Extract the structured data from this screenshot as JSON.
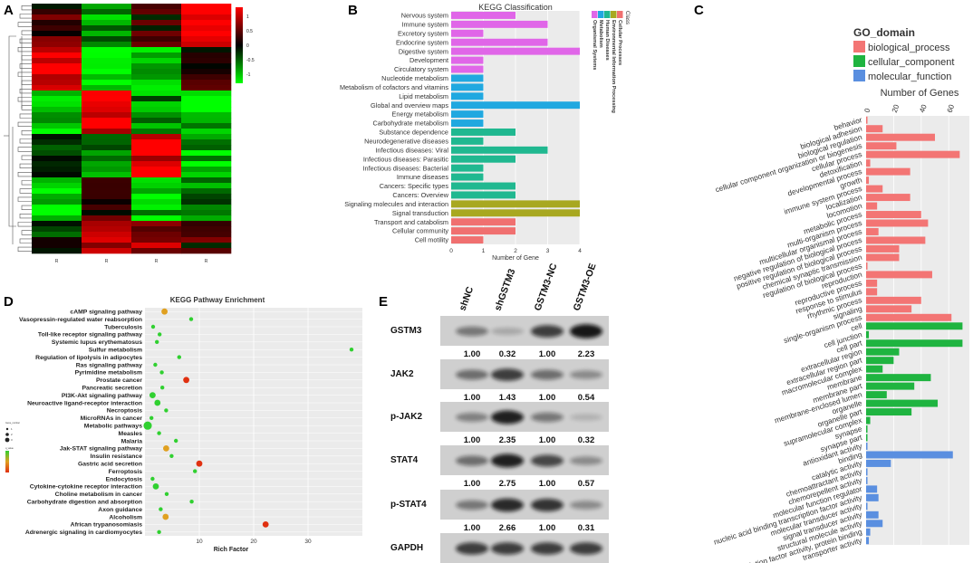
{
  "panels": {
    "A": "A",
    "B": "B",
    "C": "C",
    "D": "D",
    "E": "E"
  },
  "colors": {
    "purple": "#e066e8",
    "blue": "#20a8e0",
    "teal": "#20b890",
    "olive": "#a8a820",
    "salmon": "#f07070",
    "bp": "#f37574",
    "cc": "#1fb440",
    "mf": "#5a8fe0",
    "heat_red": "#ff0000",
    "heat_green": "#00ff00",
    "grid_bg": "#ebebeb"
  },
  "chart_data": [
    {
      "id": "A",
      "type": "heatmap",
      "colorbar": {
        "ticks": [
          "1",
          "0.5",
          "0",
          "-0.5",
          "-1"
        ],
        "range": [
          -1,
          1
        ]
      },
      "column_labels": [
        "R",
        "R",
        "R",
        "R"
      ]
    },
    {
      "id": "B",
      "type": "bar",
      "orientation": "horizontal",
      "title": "KEGG Classification",
      "xlabel": "Number of Gene",
      "xlim": [
        0,
        4
      ],
      "xticks": [
        "0",
        "1",
        "2",
        "3",
        "4"
      ],
      "legend_title": "Class",
      "legend": [
        "Cellular Processes",
        "Environmental Information Processing",
        "Human Diseases",
        "Metabolism",
        "Organismal Systems"
      ],
      "categories": [
        "Nervous system",
        "Immune system",
        "Excretory system",
        "Endocrine system",
        "Digestive system",
        "Development",
        "Circulatory system",
        "Nucleotide metabolism",
        "Metabolism of cofactors and vitamins",
        "Lipid metabolism",
        "Global and overview maps",
        "Energy metabolism",
        "Carbohydrate metabolism",
        "Substance dependence",
        "Neurodegenerative diseases",
        "Infectious diseases: Viral",
        "Infectious diseases: Parasitic",
        "Infectious diseases: Bacterial",
        "Immune diseases",
        "Cancers: Specific types",
        "Cancers: Overview",
        "Signaling molecules and interaction",
        "Signal transduction",
        "Transport and catabolism",
        "Cellular community",
        "Cell motility"
      ],
      "values": [
        2,
        3,
        1,
        3,
        4,
        1,
        1,
        1,
        1,
        1,
        4,
        1,
        1,
        2,
        1,
        3,
        2,
        1,
        1,
        2,
        2,
        4,
        4,
        2,
        2,
        1
      ],
      "classes": [
        "purple",
        "purple",
        "purple",
        "purple",
        "purple",
        "purple",
        "purple",
        "blue",
        "blue",
        "blue",
        "blue",
        "blue",
        "blue",
        "teal",
        "teal",
        "teal",
        "teal",
        "teal",
        "teal",
        "teal",
        "teal",
        "olive",
        "olive",
        "salmon",
        "salmon",
        "salmon"
      ]
    },
    {
      "id": "C",
      "type": "bar",
      "orientation": "horizontal",
      "legend_title": "GO_domain",
      "legend": [
        "biological_process",
        "cellular_component",
        "molecular_function"
      ],
      "xlabel": "Number of Genes",
      "xlim": [
        0,
        75
      ],
      "xticks": [
        "0",
        "20",
        "40",
        "60"
      ],
      "categories": [
        "behavior",
        "biological adhesion",
        "biological regulation",
        "cellular component organization or biogenesis",
        "cellular process",
        "detoxification",
        "developmental process",
        "growth",
        "immune system process",
        "localization",
        "locomotion",
        "metabolic process",
        "multi-organism process",
        "multicellular organismal process",
        "negative regulation of biological process",
        "positive regulation of biological process",
        "chemical synaptic transmission",
        "regulation of biological process",
        "reproduction",
        "reproductive process",
        "response to stimulus",
        "rhythmic process",
        "signaling",
        "single-organism process",
        "cell",
        "cell junction",
        "cell part",
        "extracellular region",
        "extracellular region part",
        "macromolecular complex",
        "membrane",
        "membrane part",
        "membrane-enclosed lumen",
        "organelle",
        "organelle part",
        "supramolecular complex",
        "synapse",
        "synapse part",
        "antioxidant activity",
        "binding",
        "catalytic activity",
        "chemoattractant activity",
        "chemorepellent activity",
        "molecular function regulator",
        "nucleic acid binding transcription factor activity",
        "molecular transducer activity",
        "signal transducer activity",
        "structural molecule activity",
        "transcription factor activity, protein binding",
        "transporter activity"
      ],
      "values": [
        1,
        12,
        50,
        22,
        68,
        3,
        32,
        2,
        12,
        32,
        8,
        40,
        45,
        9,
        43,
        24,
        24,
        1,
        48,
        8,
        8,
        40,
        33,
        62,
        70,
        2,
        70,
        24,
        20,
        12,
        47,
        35,
        15,
        52,
        33,
        3,
        1,
        1,
        1,
        63,
        18,
        1,
        1,
        8,
        9,
        1,
        9,
        12,
        3,
        2
      ],
      "domains": [
        "bp",
        "bp",
        "bp",
        "bp",
        "bp",
        "bp",
        "bp",
        "bp",
        "bp",
        "bp",
        "bp",
        "bp",
        "bp",
        "bp",
        "bp",
        "bp",
        "bp",
        "bp",
        "bp",
        "bp",
        "bp",
        "bp",
        "bp",
        "bp",
        "cc",
        "cc",
        "cc",
        "cc",
        "cc",
        "cc",
        "cc",
        "cc",
        "cc",
        "cc",
        "cc",
        "cc",
        "cc",
        "cc",
        "mf",
        "mf",
        "mf",
        "mf",
        "mf",
        "mf",
        "mf",
        "mf",
        "mf",
        "mf",
        "mf",
        "mf"
      ]
    },
    {
      "id": "D",
      "type": "scatter",
      "title": "KEGG Pathway Enrichment",
      "xlabel": "Rich Factor",
      "xlim": [
        0,
        40
      ],
      "xticks": [
        "10",
        "20",
        "30"
      ],
      "legend_labels": [
        "Gene_number",
        "1",
        "2",
        "3",
        "q_value"
      ],
      "categories": [
        "cAMP signaling pathway",
        "Vasopressin-regulated water reabsorption",
        "Tuberculosis",
        "Toll-like receptor signaling pathway",
        "Systemic lupus erythematosus",
        "Sulfur metabolism",
        "Regulation of lipolysis in adipocytes",
        "Ras signaling pathway",
        "Pyrimidine metabolism",
        "Prostate cancer",
        "Pancreatic secretion",
        "PI3K-Akt signaling pathway",
        "Neuroactive ligand-receptor interaction",
        "Necroptosis",
        "MicroRNAs in cancer",
        "Metabolic pathways",
        "Measles",
        "Malaria",
        "Jak-STAT signaling pathway",
        "Insulin resistance",
        "Gastric acid secretion",
        "Ferroptosis",
        "Endocytosis",
        "Cytokine-cytokine receptor interaction",
        "Choline metabolism in cancer",
        "Carbohydrate digestion and absorption",
        "Axon guidance",
        "Alcoholism",
        "African trypanosomiasis",
        "Adrenergic signaling in cardiomyocytes"
      ],
      "x": [
        3.6,
        8.5,
        1.5,
        2.7,
        2.2,
        38,
        6.3,
        1.9,
        3.1,
        7.6,
        3.2,
        1.4,
        2.3,
        3.9,
        1.2,
        0.5,
        2.6,
        5.7,
        3.9,
        4.9,
        10,
        9.2,
        1.4,
        2,
        4,
        8.6,
        2.9,
        3.8,
        22.2,
        2.6
      ],
      "gene_number": [
        2,
        1,
        1,
        1,
        1,
        1,
        1,
        1,
        1,
        2,
        1,
        2,
        2,
        1,
        1,
        3,
        1,
        1,
        2,
        1,
        2,
        1,
        1,
        2,
        1,
        1,
        1,
        2,
        2,
        1
      ],
      "q_value": [
        0.4,
        0.1,
        0.1,
        0.1,
        0.1,
        0.1,
        0.1,
        0.1,
        0.1,
        0.9,
        0.1,
        0.1,
        0.1,
        0.1,
        0.1,
        0.1,
        0.1,
        0.1,
        0.4,
        0.1,
        0.95,
        0.1,
        0.1,
        0.1,
        0.1,
        0.1,
        0.1,
        0.4,
        0.95,
        0.1
      ]
    },
    {
      "id": "E",
      "type": "table",
      "lanes": [
        "shNC",
        "shGSTM3",
        "GSTM3-NC",
        "GSTM3-OE"
      ],
      "bands": [
        {
          "label": "GSTM3",
          "values": [
            "1.00",
            "0.32",
            "1.00",
            "2.23"
          ]
        },
        {
          "label": "JAK2",
          "values": [
            "1.00",
            "1.43",
            "1.00",
            "0.54"
          ]
        },
        {
          "label": "p-JAK2",
          "values": [
            "1.00",
            "2.35",
            "1.00",
            "0.32"
          ]
        },
        {
          "label": "STAT4",
          "values": [
            "1.00",
            "2.75",
            "1.00",
            "0.57"
          ]
        },
        {
          "label": "p-STAT4",
          "values": [
            "1.00",
            "2.66",
            "1.00",
            "0.31"
          ]
        },
        {
          "label": "GAPDH",
          "values": []
        }
      ]
    }
  ]
}
